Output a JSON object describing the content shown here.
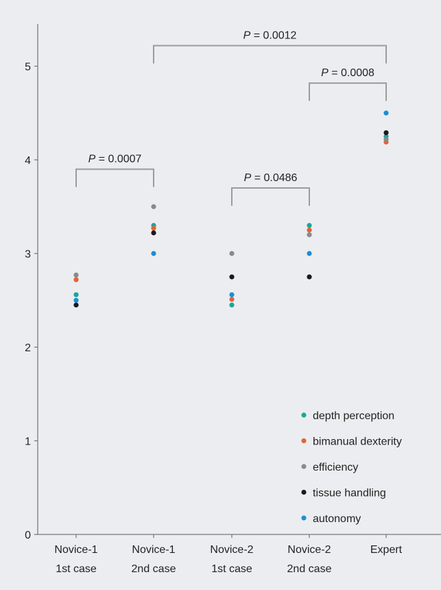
{
  "chart_data": {
    "type": "scatter",
    "categories": [
      [
        "Novice-1",
        "1st case"
      ],
      [
        "Novice-1",
        "2nd case"
      ],
      [
        "Novice-2",
        "1st case"
      ],
      [
        "Novice-2",
        "2nd case"
      ],
      [
        "Expert"
      ]
    ],
    "yticks": [
      "0",
      "1",
      "2",
      "3",
      "4",
      "5"
    ],
    "ylim": [
      0,
      5.45
    ],
    "grid": false,
    "legend_position": "bottom-right",
    "series": [
      {
        "name": "depth perception",
        "color": "#1aa69a",
        "values": [
          2.56,
          3.3,
          2.45,
          3.3,
          4.25
        ]
      },
      {
        "name": "bimanual dexterity",
        "color": "#e0643c",
        "values": [
          2.72,
          3.27,
          2.51,
          3.25,
          4.19
        ]
      },
      {
        "name": "efficiency",
        "color": "#8a8a8a",
        "values": [
          2.77,
          3.5,
          3.0,
          3.2,
          4.22
        ]
      },
      {
        "name": "tissue handling",
        "color": "#1a1a1a",
        "values": [
          2.45,
          3.22,
          2.75,
          2.75,
          4.29
        ]
      },
      {
        "name": "autonomy",
        "color": "#1b8fd6",
        "values": [
          2.5,
          3.0,
          2.56,
          3.0,
          4.5
        ]
      }
    ],
    "annotations": [
      {
        "from": 0,
        "to": 1,
        "level": 3.9,
        "text": "= 0.0007"
      },
      {
        "from": 2,
        "to": 3,
        "level": 3.7,
        "text": "= 0.0486"
      },
      {
        "from": 3,
        "to": 4,
        "level": 4.82,
        "text": "= 0.0008"
      },
      {
        "from": 1,
        "to": 4,
        "level": 5.22,
        "text": "= 0.0012"
      }
    ],
    "annotation_prefix": "P",
    "colors": {
      "axis": "#7a7a7a",
      "bracket": "#9b9b9b",
      "background": "#ecedf0"
    }
  }
}
